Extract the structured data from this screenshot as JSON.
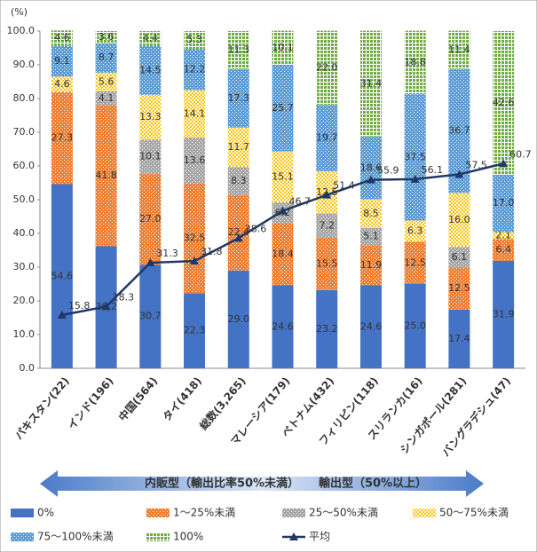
{
  "chart_data": {
    "type": "bar",
    "stacked": true,
    "ylabel": "(%)",
    "categories": [
      "パキスタン(22)",
      "インド(196)",
      "中国(564)",
      "タイ(418)",
      "総数(3,265)",
      "マレーシア(179)",
      "ベトナム(432)",
      "フィリピン(118)",
      "スリランカ(16)",
      "シンガポール(281)",
      "バングラデシュ(47)"
    ],
    "ylim": [
      0,
      100
    ],
    "yticks": [
      {
        "value": 0,
        "label": "0.0"
      },
      {
        "value": 10,
        "label": "10.0"
      },
      {
        "value": 20,
        "label": "20.0"
      },
      {
        "value": 30,
        "label": "30.0"
      },
      {
        "value": 40,
        "label": "40.0"
      },
      {
        "value": 50,
        "label": "50.0"
      },
      {
        "value": 60,
        "label": "60.0"
      },
      {
        "value": 70,
        "label": "70.0"
      },
      {
        "value": 80,
        "label": "80.0"
      },
      {
        "value": 90,
        "label": "90.0"
      },
      {
        "value": 100,
        "label": "100.0"
      }
    ],
    "series": [
      {
        "name": "0%",
        "color": "#4472c4",
        "pattern": "solid",
        "values": [
          54.6,
          36.2,
          30.7,
          22.3,
          29.0,
          24.6,
          23.2,
          24.6,
          25.0,
          17.4,
          31.9
        ],
        "value_labels": [
          "54.6",
          "36.2",
          "30.7",
          "22.3",
          "29.0",
          "24.6",
          "23.2",
          "24.6",
          "25.0",
          "17.4",
          "31.9"
        ]
      },
      {
        "name": "1～25%未満",
        "color": "#ed7d31",
        "pattern": "dots",
        "values": [
          27.3,
          41.8,
          27.0,
          32.5,
          22.4,
          18.4,
          15.5,
          11.9,
          12.5,
          12.5,
          6.4
        ],
        "value_labels": [
          "27.3",
          "41.8",
          "27.0",
          "32.5",
          "22.4",
          "18.4",
          "15.5",
          "11.9",
          "12.5",
          "12.5",
          "6.4"
        ]
      },
      {
        "name": "25～50%未満",
        "color": "#a5a5a5",
        "pattern": "dots",
        "values": [
          null,
          4.1,
          10.1,
          13.6,
          8.3,
          6.2,
          7.2,
          5.1,
          null,
          6.1,
          null
        ],
        "value_labels": [
          null,
          "4.1",
          "10.1",
          "13.6",
          "8.3",
          "6.2",
          "7.2",
          "5.1",
          null,
          "6.1",
          null
        ]
      },
      {
        "name": "50～75%未満",
        "color": "#ffc000",
        "pattern": "checker",
        "values": [
          4.6,
          5.6,
          13.3,
          14.1,
          11.7,
          15.1,
          12.5,
          8.5,
          6.3,
          16.0,
          2.1
        ],
        "value_labels": [
          "4.6",
          "5.6",
          "13.3",
          "14.1",
          "11.7",
          "15.1",
          "12.5",
          "8.5",
          "6.3",
          "16.0",
          "2.1"
        ]
      },
      {
        "name": "75～100%未満",
        "color": "#5b9bd5",
        "pattern": "dots",
        "values": [
          9.1,
          8.7,
          14.5,
          12.2,
          17.3,
          25.7,
          19.7,
          18.6,
          37.5,
          36.7,
          17.0
        ],
        "value_labels": [
          "9.1",
          "8.7",
          "14.5",
          "12.2",
          "17.3",
          "25.7",
          "19.7",
          "18.6",
          "37.5",
          "36.7",
          "17.0"
        ]
      },
      {
        "name": "100%",
        "color": "#70ad47",
        "pattern": "grid",
        "values": [
          4.6,
          3.6,
          4.4,
          5.3,
          11.3,
          10.1,
          22.0,
          31.4,
          18.8,
          11.4,
          42.6
        ],
        "value_labels": [
          "4.6",
          "3.6",
          "4.4",
          "5.3",
          "11.3",
          "10.1",
          "22.0",
          "31.4",
          "18.8",
          "11.4",
          "42.6"
        ]
      },
      {
        "name": "平均",
        "color": "#203864",
        "type": "line",
        "values": [
          15.8,
          18.3,
          31.3,
          31.8,
          38.6,
          46.7,
          51.4,
          55.9,
          56.1,
          57.5,
          60.7
        ]
      }
    ],
    "annotations": [
      "内販型（輸出比率50%未満）",
      "輸出型（50%以上）"
    ]
  }
}
